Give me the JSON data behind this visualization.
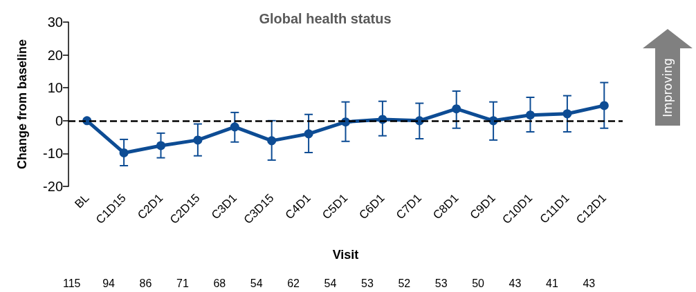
{
  "chart_data": {
    "type": "line",
    "title": "Global health status",
    "xlabel": "Visit",
    "ylabel": "Change from baseline",
    "categories": [
      "BL",
      "C1D15",
      "C2D1",
      "C2D15",
      "C3D1",
      "C3D15",
      "C4D1",
      "C5D1",
      "C6D1",
      "C7D1",
      "C8D1",
      "C9D1",
      "C10D1",
      "C11D1",
      "C12D1"
    ],
    "series": [
      {
        "color": "#0d4c94",
        "values": [
          0,
          -9.8,
          -7.6,
          -5.9,
          -1.9,
          -6.1,
          -4,
          -0.4,
          0.4,
          0,
          3.6,
          0,
          1.7,
          2.1,
          4.6
        ],
        "errors": [
          null,
          [
            -13.7,
            -5.7
          ],
          [
            -11.3,
            -3.8
          ],
          [
            -10.7,
            -1
          ],
          [
            -6.5,
            2.5
          ],
          [
            -12,
            0
          ],
          [
            -9.7,
            1.9
          ],
          [
            -6.3,
            5.7
          ],
          [
            -4.6,
            5.9
          ],
          [
            -5.5,
            5.3
          ],
          [
            -2.3,
            9
          ],
          [
            -5.9,
            5.7
          ],
          [
            -3.4,
            7.1
          ],
          [
            -3.4,
            7.6
          ],
          [
            -2.3,
            11.6
          ]
        ]
      }
    ],
    "ylim": [
      -20,
      30
    ],
    "yticks": [
      -20,
      -10,
      0,
      10,
      20,
      30
    ],
    "grid": false,
    "marker": "circle",
    "line_style": "solid",
    "ref_lines": [
      {
        "axis": "y",
        "value": 0,
        "color": "#000000",
        "line_style": "dashed"
      }
    ],
    "annotations": [
      "Improving",
      "115",
      "94",
      "86",
      "71",
      "68",
      "54",
      "62",
      "54",
      "53",
      "52",
      "53",
      "50",
      "43",
      "41",
      "43"
    ]
  }
}
